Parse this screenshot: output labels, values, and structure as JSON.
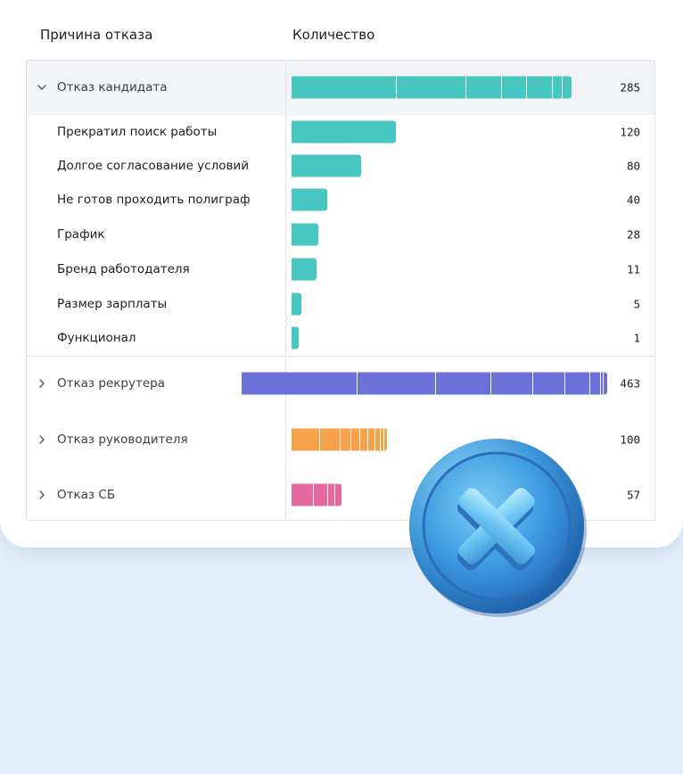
{
  "header": {
    "reason": "Причина отказа",
    "count": "Количество"
  },
  "colors": {
    "candidate": "#48c6c1",
    "recruiter": "#6b6fd8",
    "manager": "#f5a24a",
    "security": "#e4699c"
  },
  "groups": {
    "candidate": {
      "label": "Отказ кандидата",
      "count": "285",
      "expanded": true,
      "items": [
        {
          "label": "Прекратил поиск работы",
          "count": "120"
        },
        {
          "label": "Долгое согласование условий",
          "count": "80"
        },
        {
          "label": "Не готов проходить полиграф",
          "count": "40"
        },
        {
          "label": "График",
          "count": "28"
        },
        {
          "label": "Бренд работодателя",
          "count": "11"
        },
        {
          "label": "Размер зарплаты",
          "count": "5"
        },
        {
          "label": "Функционал",
          "count": "1"
        }
      ]
    },
    "recruiter": {
      "label": "Отказ рекрутера",
      "count": "463",
      "expanded": false
    },
    "manager": {
      "label": "Отказ руководителя",
      "count": "100",
      "expanded": false
    },
    "security": {
      "label": "Отказ СБ",
      "count": "57",
      "expanded": false
    }
  },
  "overlay": {
    "icon": "close-coin-icon"
  }
}
